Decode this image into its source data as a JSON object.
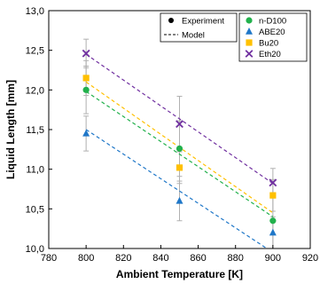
{
  "chart_data": {
    "type": "scatter",
    "xlabel": "Ambient Temperature [K]",
    "ylabel": "Liquid Length [mm]",
    "xlim": [
      780,
      920
    ],
    "ylim": [
      10.0,
      13.0
    ],
    "xticks": [
      780,
      800,
      820,
      840,
      860,
      880,
      900,
      920
    ],
    "xtick_labels": [
      "780",
      "800",
      "820",
      "840",
      "860",
      "880",
      "900",
      "920"
    ],
    "yticks": [
      10.0,
      10.5,
      11.0,
      11.5,
      12.0,
      12.5,
      13.0
    ],
    "ytick_labels": [
      "10,0",
      "10,5",
      "11,0",
      "11,5",
      "12,0",
      "12,5",
      "13,0"
    ],
    "grid": false,
    "legend_style": {
      "placement": "top-right",
      "experiment_label": "Experiment",
      "model_label": "Model"
    },
    "series": [
      {
        "name": "n-D100",
        "color": "#22b14c",
        "marker": "circle",
        "x": [
          800,
          850,
          900
        ],
        "y": [
          12.0,
          11.26,
          10.35
        ],
        "err": [
          0.3,
          0.35,
          0.35
        ],
        "model": {
          "x": [
            800,
            900
          ],
          "y": [
            11.98,
            10.4
          ]
        }
      },
      {
        "name": "ABE20",
        "color": "#1f77c8",
        "marker": "triangle",
        "x": [
          800,
          850,
          900
        ],
        "y": [
          11.45,
          10.6,
          10.2
        ],
        "err": [
          0.22,
          0.25,
          0.2
        ],
        "model": {
          "x": [
            800,
            900
          ],
          "y": [
            11.5,
            9.95
          ]
        }
      },
      {
        "name": "Bu20",
        "color": "#ffc000",
        "marker": "square",
        "x": [
          800,
          850,
          900
        ],
        "y": [
          12.15,
          11.02,
          10.67
        ],
        "err": [
          0.22,
          0.2,
          0.2
        ],
        "model": {
          "x": [
            800,
            900
          ],
          "y": [
            12.1,
            10.45
          ]
        }
      },
      {
        "name": "Eth20",
        "color": "#7030a0",
        "marker": "x",
        "x": [
          800,
          850,
          900
        ],
        "y": [
          12.46,
          11.57,
          10.83
        ],
        "err": [
          0.18,
          0.35,
          0.18
        ],
        "model": {
          "x": [
            800,
            900
          ],
          "y": [
            12.45,
            10.82
          ]
        }
      }
    ]
  }
}
